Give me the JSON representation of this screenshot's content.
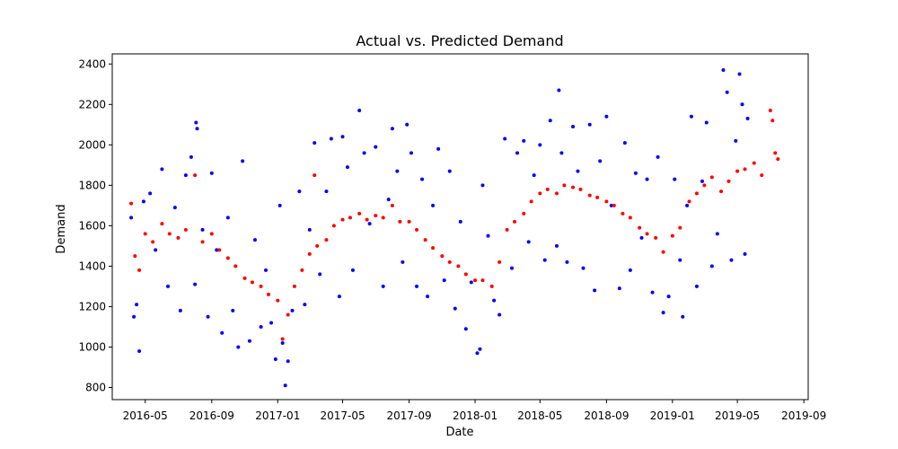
{
  "chart_data": {
    "type": "scatter",
    "title": "Actual vs. Predicted Demand",
    "xlabel": "Date",
    "ylabel": "Demand",
    "x_axis": {
      "type": "date",
      "min": "2016-03-01",
      "max": "2019-09-09",
      "ticks": [
        "2016-05",
        "2016-09",
        "2017-01",
        "2017-05",
        "2017-09",
        "2018-01",
        "2018-05",
        "2018-09",
        "2019-01",
        "2019-05",
        "2019-09"
      ]
    },
    "y_axis": {
      "min": 740,
      "max": 2450,
      "ticks": [
        800,
        1000,
        1200,
        1400,
        1600,
        1800,
        2000,
        2200,
        2400
      ]
    },
    "grid": false,
    "legend": "none",
    "series": [
      {
        "color": "#0000ff",
        "points": [
          [
            "2016-04-05",
            1640
          ],
          [
            "2016-04-10",
            1150
          ],
          [
            "2016-04-15",
            1210
          ],
          [
            "2016-04-20",
            980
          ],
          [
            "2016-04-28",
            1720
          ],
          [
            "2016-05-10",
            1760
          ],
          [
            "2016-05-20",
            1480
          ],
          [
            "2016-06-01",
            1880
          ],
          [
            "2016-06-12",
            1300
          ],
          [
            "2016-06-25",
            1690
          ],
          [
            "2016-07-05",
            1180
          ],
          [
            "2016-07-15",
            1850
          ],
          [
            "2016-07-25",
            1940
          ],
          [
            "2016-08-01",
            1310
          ],
          [
            "2016-08-03",
            2110
          ],
          [
            "2016-08-05",
            2080
          ],
          [
            "2016-08-15",
            1580
          ],
          [
            "2016-08-25",
            1150
          ],
          [
            "2016-09-01",
            1860
          ],
          [
            "2016-09-10",
            1480
          ],
          [
            "2016-09-20",
            1070
          ],
          [
            "2016-10-01",
            1640
          ],
          [
            "2016-10-10",
            1180
          ],
          [
            "2016-10-20",
            1000
          ],
          [
            "2016-10-28",
            1920
          ],
          [
            "2016-11-10",
            1030
          ],
          [
            "2016-11-20",
            1530
          ],
          [
            "2016-12-01",
            1100
          ],
          [
            "2016-12-10",
            1380
          ],
          [
            "2016-12-20",
            1120
          ],
          [
            "2016-12-28",
            940
          ],
          [
            "2017-01-05",
            1700
          ],
          [
            "2017-01-10",
            1020
          ],
          [
            "2017-01-15",
            810
          ],
          [
            "2017-01-20",
            930
          ],
          [
            "2017-01-28",
            1180
          ],
          [
            "2017-02-10",
            1770
          ],
          [
            "2017-02-20",
            1210
          ],
          [
            "2017-03-01",
            1580
          ],
          [
            "2017-03-10",
            2010
          ],
          [
            "2017-03-20",
            1360
          ],
          [
            "2017-04-01",
            1770
          ],
          [
            "2017-04-10",
            2030
          ],
          [
            "2017-04-25",
            1250
          ],
          [
            "2017-05-01",
            2040
          ],
          [
            "2017-05-10",
            1890
          ],
          [
            "2017-05-20",
            1380
          ],
          [
            "2017-06-01",
            2170
          ],
          [
            "2017-06-10",
            1960
          ],
          [
            "2017-06-20",
            1610
          ],
          [
            "2017-07-01",
            1990
          ],
          [
            "2017-07-15",
            1300
          ],
          [
            "2017-07-25",
            1730
          ],
          [
            "2017-08-01",
            2080
          ],
          [
            "2017-08-10",
            1870
          ],
          [
            "2017-08-20",
            1420
          ],
          [
            "2017-08-28",
            2100
          ],
          [
            "2017-09-05",
            1960
          ],
          [
            "2017-09-15",
            1300
          ],
          [
            "2017-09-25",
            1830
          ],
          [
            "2017-10-05",
            1250
          ],
          [
            "2017-10-15",
            1700
          ],
          [
            "2017-10-25",
            1980
          ],
          [
            "2017-11-05",
            1330
          ],
          [
            "2017-11-15",
            1870
          ],
          [
            "2017-11-25",
            1190
          ],
          [
            "2017-12-05",
            1620
          ],
          [
            "2017-12-15",
            1090
          ],
          [
            "2017-12-25",
            1320
          ],
          [
            "2018-01-05",
            970
          ],
          [
            "2018-01-10",
            990
          ],
          [
            "2018-01-15",
            1800
          ],
          [
            "2018-01-25",
            1550
          ],
          [
            "2018-02-05",
            1230
          ],
          [
            "2018-02-15",
            1160
          ],
          [
            "2018-02-25",
            2030
          ],
          [
            "2018-03-10",
            1390
          ],
          [
            "2018-03-20",
            1960
          ],
          [
            "2018-04-01",
            2020
          ],
          [
            "2018-04-10",
            1520
          ],
          [
            "2018-04-20",
            1850
          ],
          [
            "2018-05-01",
            2000
          ],
          [
            "2018-05-10",
            1430
          ],
          [
            "2018-05-20",
            2120
          ],
          [
            "2018-06-01",
            1500
          ],
          [
            "2018-06-05",
            2270
          ],
          [
            "2018-06-10",
            1960
          ],
          [
            "2018-06-20",
            1420
          ],
          [
            "2018-07-01",
            2090
          ],
          [
            "2018-07-10",
            1870
          ],
          [
            "2018-07-20",
            1390
          ],
          [
            "2018-08-01",
            2100
          ],
          [
            "2018-08-10",
            1280
          ],
          [
            "2018-08-20",
            1920
          ],
          [
            "2018-09-01",
            2140
          ],
          [
            "2018-09-10",
            1700
          ],
          [
            "2018-09-25",
            1290
          ],
          [
            "2018-10-05",
            2010
          ],
          [
            "2018-10-15",
            1380
          ],
          [
            "2018-10-25",
            1860
          ],
          [
            "2018-11-05",
            1540
          ],
          [
            "2018-11-15",
            1830
          ],
          [
            "2018-11-25",
            1270
          ],
          [
            "2018-12-05",
            1940
          ],
          [
            "2018-12-15",
            1170
          ],
          [
            "2018-12-25",
            1250
          ],
          [
            "2019-01-05",
            1830
          ],
          [
            "2019-01-15",
            1430
          ],
          [
            "2019-01-20",
            1150
          ],
          [
            "2019-01-28",
            1700
          ],
          [
            "2019-02-05",
            2140
          ],
          [
            "2019-02-15",
            1300
          ],
          [
            "2019-02-25",
            1820
          ],
          [
            "2019-03-05",
            2110
          ],
          [
            "2019-03-15",
            1400
          ],
          [
            "2019-03-25",
            1560
          ],
          [
            "2019-04-05",
            2370
          ],
          [
            "2019-04-12",
            2260
          ],
          [
            "2019-04-20",
            1430
          ],
          [
            "2019-04-28",
            2020
          ],
          [
            "2019-05-05",
            2350
          ],
          [
            "2019-05-10",
            2200
          ],
          [
            "2019-05-15",
            1460
          ],
          [
            "2019-05-20",
            2130
          ]
        ]
      },
      {
        "color": "#ff0000",
        "points": [
          [
            "2016-04-05",
            1710
          ],
          [
            "2016-04-12",
            1450
          ],
          [
            "2016-04-20",
            1380
          ],
          [
            "2016-05-01",
            1560
          ],
          [
            "2016-05-15",
            1520
          ],
          [
            "2016-06-01",
            1610
          ],
          [
            "2016-06-15",
            1560
          ],
          [
            "2016-07-01",
            1540
          ],
          [
            "2016-07-15",
            1580
          ],
          [
            "2016-08-01",
            1850
          ],
          [
            "2016-08-15",
            1520
          ],
          [
            "2016-09-01",
            1560
          ],
          [
            "2016-09-15",
            1480
          ],
          [
            "2016-10-01",
            1440
          ],
          [
            "2016-10-15",
            1400
          ],
          [
            "2016-11-01",
            1340
          ],
          [
            "2016-11-15",
            1320
          ],
          [
            "2016-12-01",
            1300
          ],
          [
            "2016-12-15",
            1260
          ],
          [
            "2017-01-01",
            1230
          ],
          [
            "2017-01-10",
            1040
          ],
          [
            "2017-01-20",
            1160
          ],
          [
            "2017-02-01",
            1300
          ],
          [
            "2017-02-15",
            1380
          ],
          [
            "2017-03-01",
            1460
          ],
          [
            "2017-03-10",
            1850
          ],
          [
            "2017-03-15",
            1500
          ],
          [
            "2017-04-01",
            1530
          ],
          [
            "2017-04-15",
            1600
          ],
          [
            "2017-05-01",
            1630
          ],
          [
            "2017-05-15",
            1640
          ],
          [
            "2017-06-01",
            1660
          ],
          [
            "2017-06-15",
            1630
          ],
          [
            "2017-07-01",
            1650
          ],
          [
            "2017-07-15",
            1640
          ],
          [
            "2017-08-01",
            1700
          ],
          [
            "2017-08-15",
            1620
          ],
          [
            "2017-09-01",
            1620
          ],
          [
            "2017-09-15",
            1580
          ],
          [
            "2017-10-01",
            1530
          ],
          [
            "2017-10-15",
            1490
          ],
          [
            "2017-11-01",
            1450
          ],
          [
            "2017-11-15",
            1420
          ],
          [
            "2017-12-01",
            1400
          ],
          [
            "2017-12-15",
            1360
          ],
          [
            "2018-01-01",
            1330
          ],
          [
            "2018-01-15",
            1330
          ],
          [
            "2018-02-01",
            1300
          ],
          [
            "2018-02-15",
            1420
          ],
          [
            "2018-03-01",
            1580
          ],
          [
            "2018-03-15",
            1620
          ],
          [
            "2018-04-01",
            1660
          ],
          [
            "2018-04-15",
            1720
          ],
          [
            "2018-05-01",
            1760
          ],
          [
            "2018-05-15",
            1780
          ],
          [
            "2018-06-01",
            1760
          ],
          [
            "2018-06-15",
            1800
          ],
          [
            "2018-07-01",
            1790
          ],
          [
            "2018-07-15",
            1780
          ],
          [
            "2018-08-01",
            1750
          ],
          [
            "2018-08-15",
            1740
          ],
          [
            "2018-09-01",
            1720
          ],
          [
            "2018-09-15",
            1700
          ],
          [
            "2018-10-01",
            1660
          ],
          [
            "2018-10-15",
            1640
          ],
          [
            "2018-11-01",
            1590
          ],
          [
            "2018-11-15",
            1560
          ],
          [
            "2018-12-01",
            1540
          ],
          [
            "2018-12-15",
            1470
          ],
          [
            "2019-01-01",
            1550
          ],
          [
            "2019-01-15",
            1590
          ],
          [
            "2019-02-01",
            1720
          ],
          [
            "2019-02-15",
            1760
          ],
          [
            "2019-03-01",
            1800
          ],
          [
            "2019-03-15",
            1840
          ],
          [
            "2019-04-01",
            1770
          ],
          [
            "2019-04-15",
            1820
          ],
          [
            "2019-05-01",
            1870
          ],
          [
            "2019-05-15",
            1880
          ],
          [
            "2019-06-01",
            1910
          ],
          [
            "2019-06-15",
            1850
          ],
          [
            "2019-07-01",
            2170
          ],
          [
            "2019-07-05",
            2120
          ],
          [
            "2019-07-10",
            1960
          ],
          [
            "2019-07-15",
            1930
          ]
        ]
      }
    ]
  }
}
